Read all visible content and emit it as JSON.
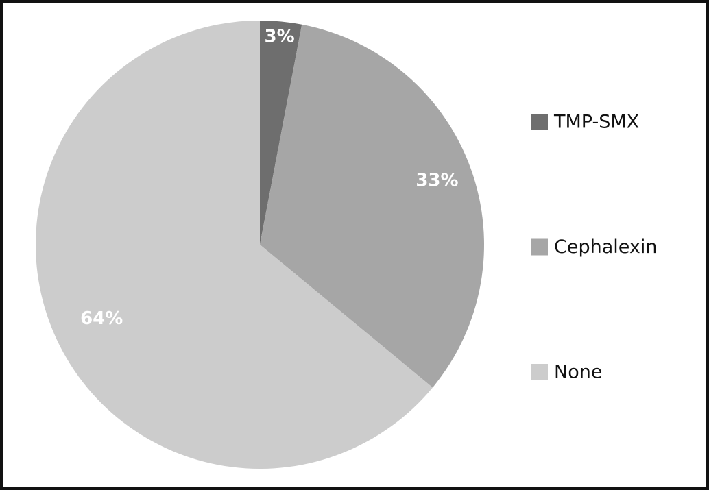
{
  "chart_data": {
    "type": "pie",
    "categories": [
      "TMP-SMX",
      "Cephalexin",
      "None"
    ],
    "values": [
      3,
      33,
      64
    ],
    "value_labels": [
      "3%",
      "33%",
      "64%"
    ],
    "colors": [
      "#6e6e6e",
      "#a6a6a6",
      "#cccccc"
    ]
  }
}
